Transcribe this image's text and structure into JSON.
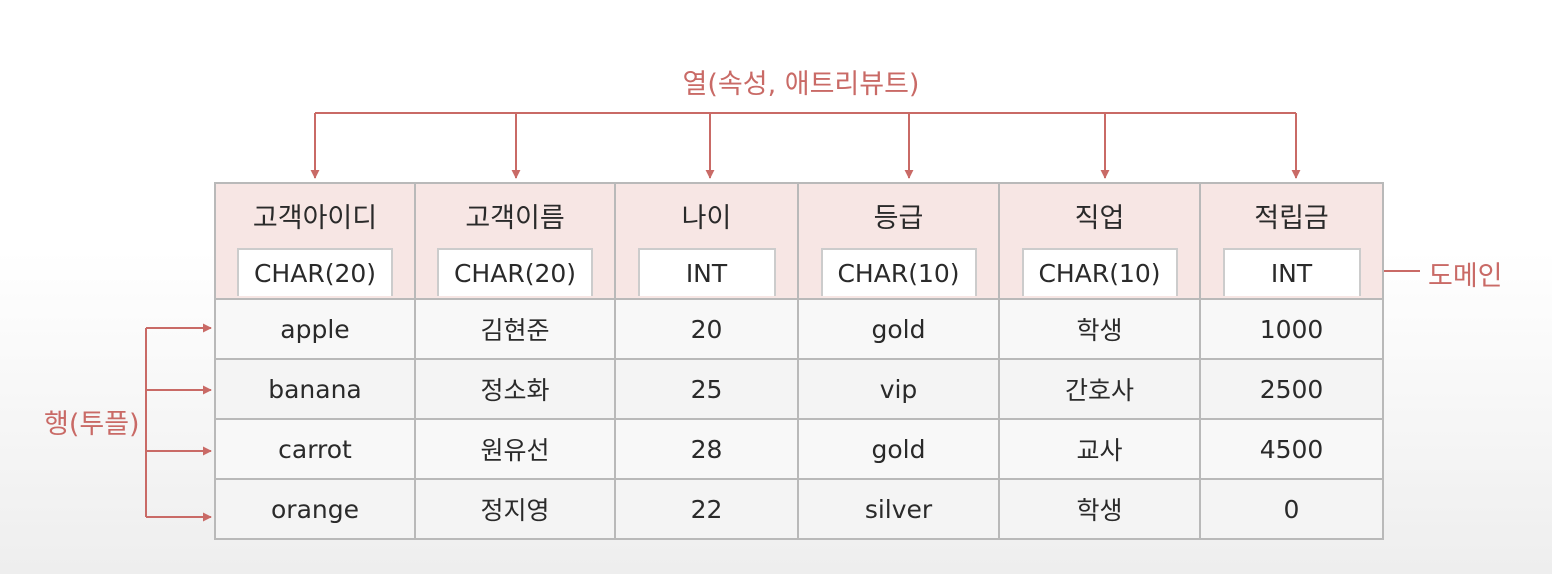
{
  "labels": {
    "attribute": "열(속성, 애트리뷰트)",
    "domain": "도메인",
    "tuple": "행(투플)"
  },
  "table": {
    "columns": [
      {
        "name": "고객아이디",
        "type": "CHAR(20)"
      },
      {
        "name": "고객이름",
        "type": "CHAR(20)"
      },
      {
        "name": "나이",
        "type": "INT"
      },
      {
        "name": "등급",
        "type": "CHAR(10)"
      },
      {
        "name": "직업",
        "type": "CHAR(10)"
      },
      {
        "name": "적립금",
        "type": "INT"
      }
    ],
    "rows": [
      [
        "apple",
        "김현준",
        "20",
        "gold",
        "학생",
        "1000"
      ],
      [
        "banana",
        "정소화",
        "25",
        "vip",
        "간호사",
        "2500"
      ],
      [
        "carrot",
        "원유선",
        "28",
        "gold",
        "교사",
        "4500"
      ],
      [
        "orange",
        "정지영",
        "22",
        "silver",
        "학생",
        "0"
      ]
    ]
  },
  "colors": {
    "accent": "#c96a66",
    "header_bg": "#f7e6e4",
    "border": "#b9b9b9"
  }
}
